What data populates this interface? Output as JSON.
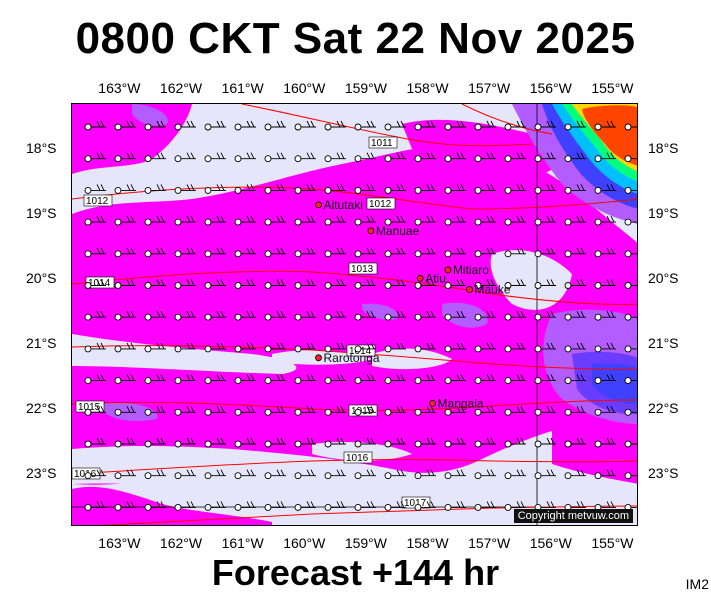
{
  "title": "0800 CKT Sat 22 Nov 2025",
  "subtitle": "Forecast +144 hr",
  "corner_tag": "IM2",
  "copyright": "Copyright metvuw.com",
  "longitudes": [
    "163°W",
    "162°W",
    "161°W",
    "160°W",
    "159°W",
    "158°W",
    "157°W",
    "156°W",
    "155°W"
  ],
  "latitudes": [
    "18°S",
    "19°S",
    "20°S",
    "21°S",
    "22°S",
    "23°S"
  ],
  "islands": [
    {
      "name": "Aitutaki",
      "lon": -159.8,
      "lat": -18.85
    },
    {
      "name": "Manuae",
      "lon": -158.95,
      "lat": -19.25
    },
    {
      "name": "Atiu",
      "lon": -158.15,
      "lat": -19.98
    },
    {
      "name": "Mitiaro",
      "lon": -157.7,
      "lat": -19.85
    },
    {
      "name": "Mauke",
      "lon": -157.35,
      "lat": -20.15
    },
    {
      "name": "Rarotonga",
      "lon": -159.8,
      "lat": -21.2
    },
    {
      "name": "Mangaia",
      "lon": -157.95,
      "lat": -21.9
    }
  ],
  "isobars": [
    {
      "label": "1011"
    },
    {
      "label": "1012"
    },
    {
      "label": "1012"
    },
    {
      "label": "1013"
    },
    {
      "label": "1014"
    },
    {
      "label": "1014"
    },
    {
      "label": "1015"
    },
    {
      "label": "1015"
    },
    {
      "label": "1016"
    },
    {
      "label": "1016"
    },
    {
      "label": "1017"
    }
  ],
  "colors": {
    "background": "#e6e6fa",
    "rain_light": "#ff00ff",
    "rain_purple": "#8a2be2",
    "rain_blue": "#3f3fff",
    "isobar": "#ff0000",
    "heavy": [
      "#ff4500",
      "#ffd700",
      "#00ff7f",
      "#00bfff"
    ]
  }
}
